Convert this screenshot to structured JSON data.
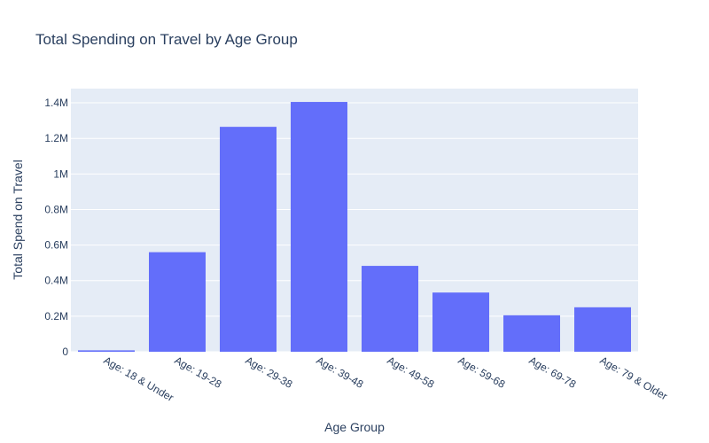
{
  "chart_data": {
    "type": "bar",
    "title": "Total Spending on Travel by Age Group",
    "xlabel": "Age Group",
    "ylabel": "Total Spend on Travel",
    "categories": [
      "Age: 18 & Under",
      "Age: 19-28",
      "Age: 29-38",
      "Age: 39-48",
      "Age: 49-58",
      "Age: 59-68",
      "Age: 69-78",
      "Age: 79 & Older"
    ],
    "values": [
      8000,
      560000,
      1265000,
      1405000,
      483000,
      333000,
      205000,
      250000
    ],
    "ylim": [
      0,
      1480000
    ],
    "yticks": [
      0,
      200000,
      400000,
      600000,
      800000,
      1000000,
      1200000,
      1400000
    ],
    "ytick_labels": [
      "0",
      "0.2M",
      "0.4M",
      "0.6M",
      "0.8M",
      "1M",
      "1.2M",
      "1.4M"
    ],
    "grid": true,
    "colors": {
      "bar": "#636efa",
      "plot_bg": "#e5ecf6",
      "grid": "#ffffff",
      "text": "#2a3f5f"
    }
  }
}
